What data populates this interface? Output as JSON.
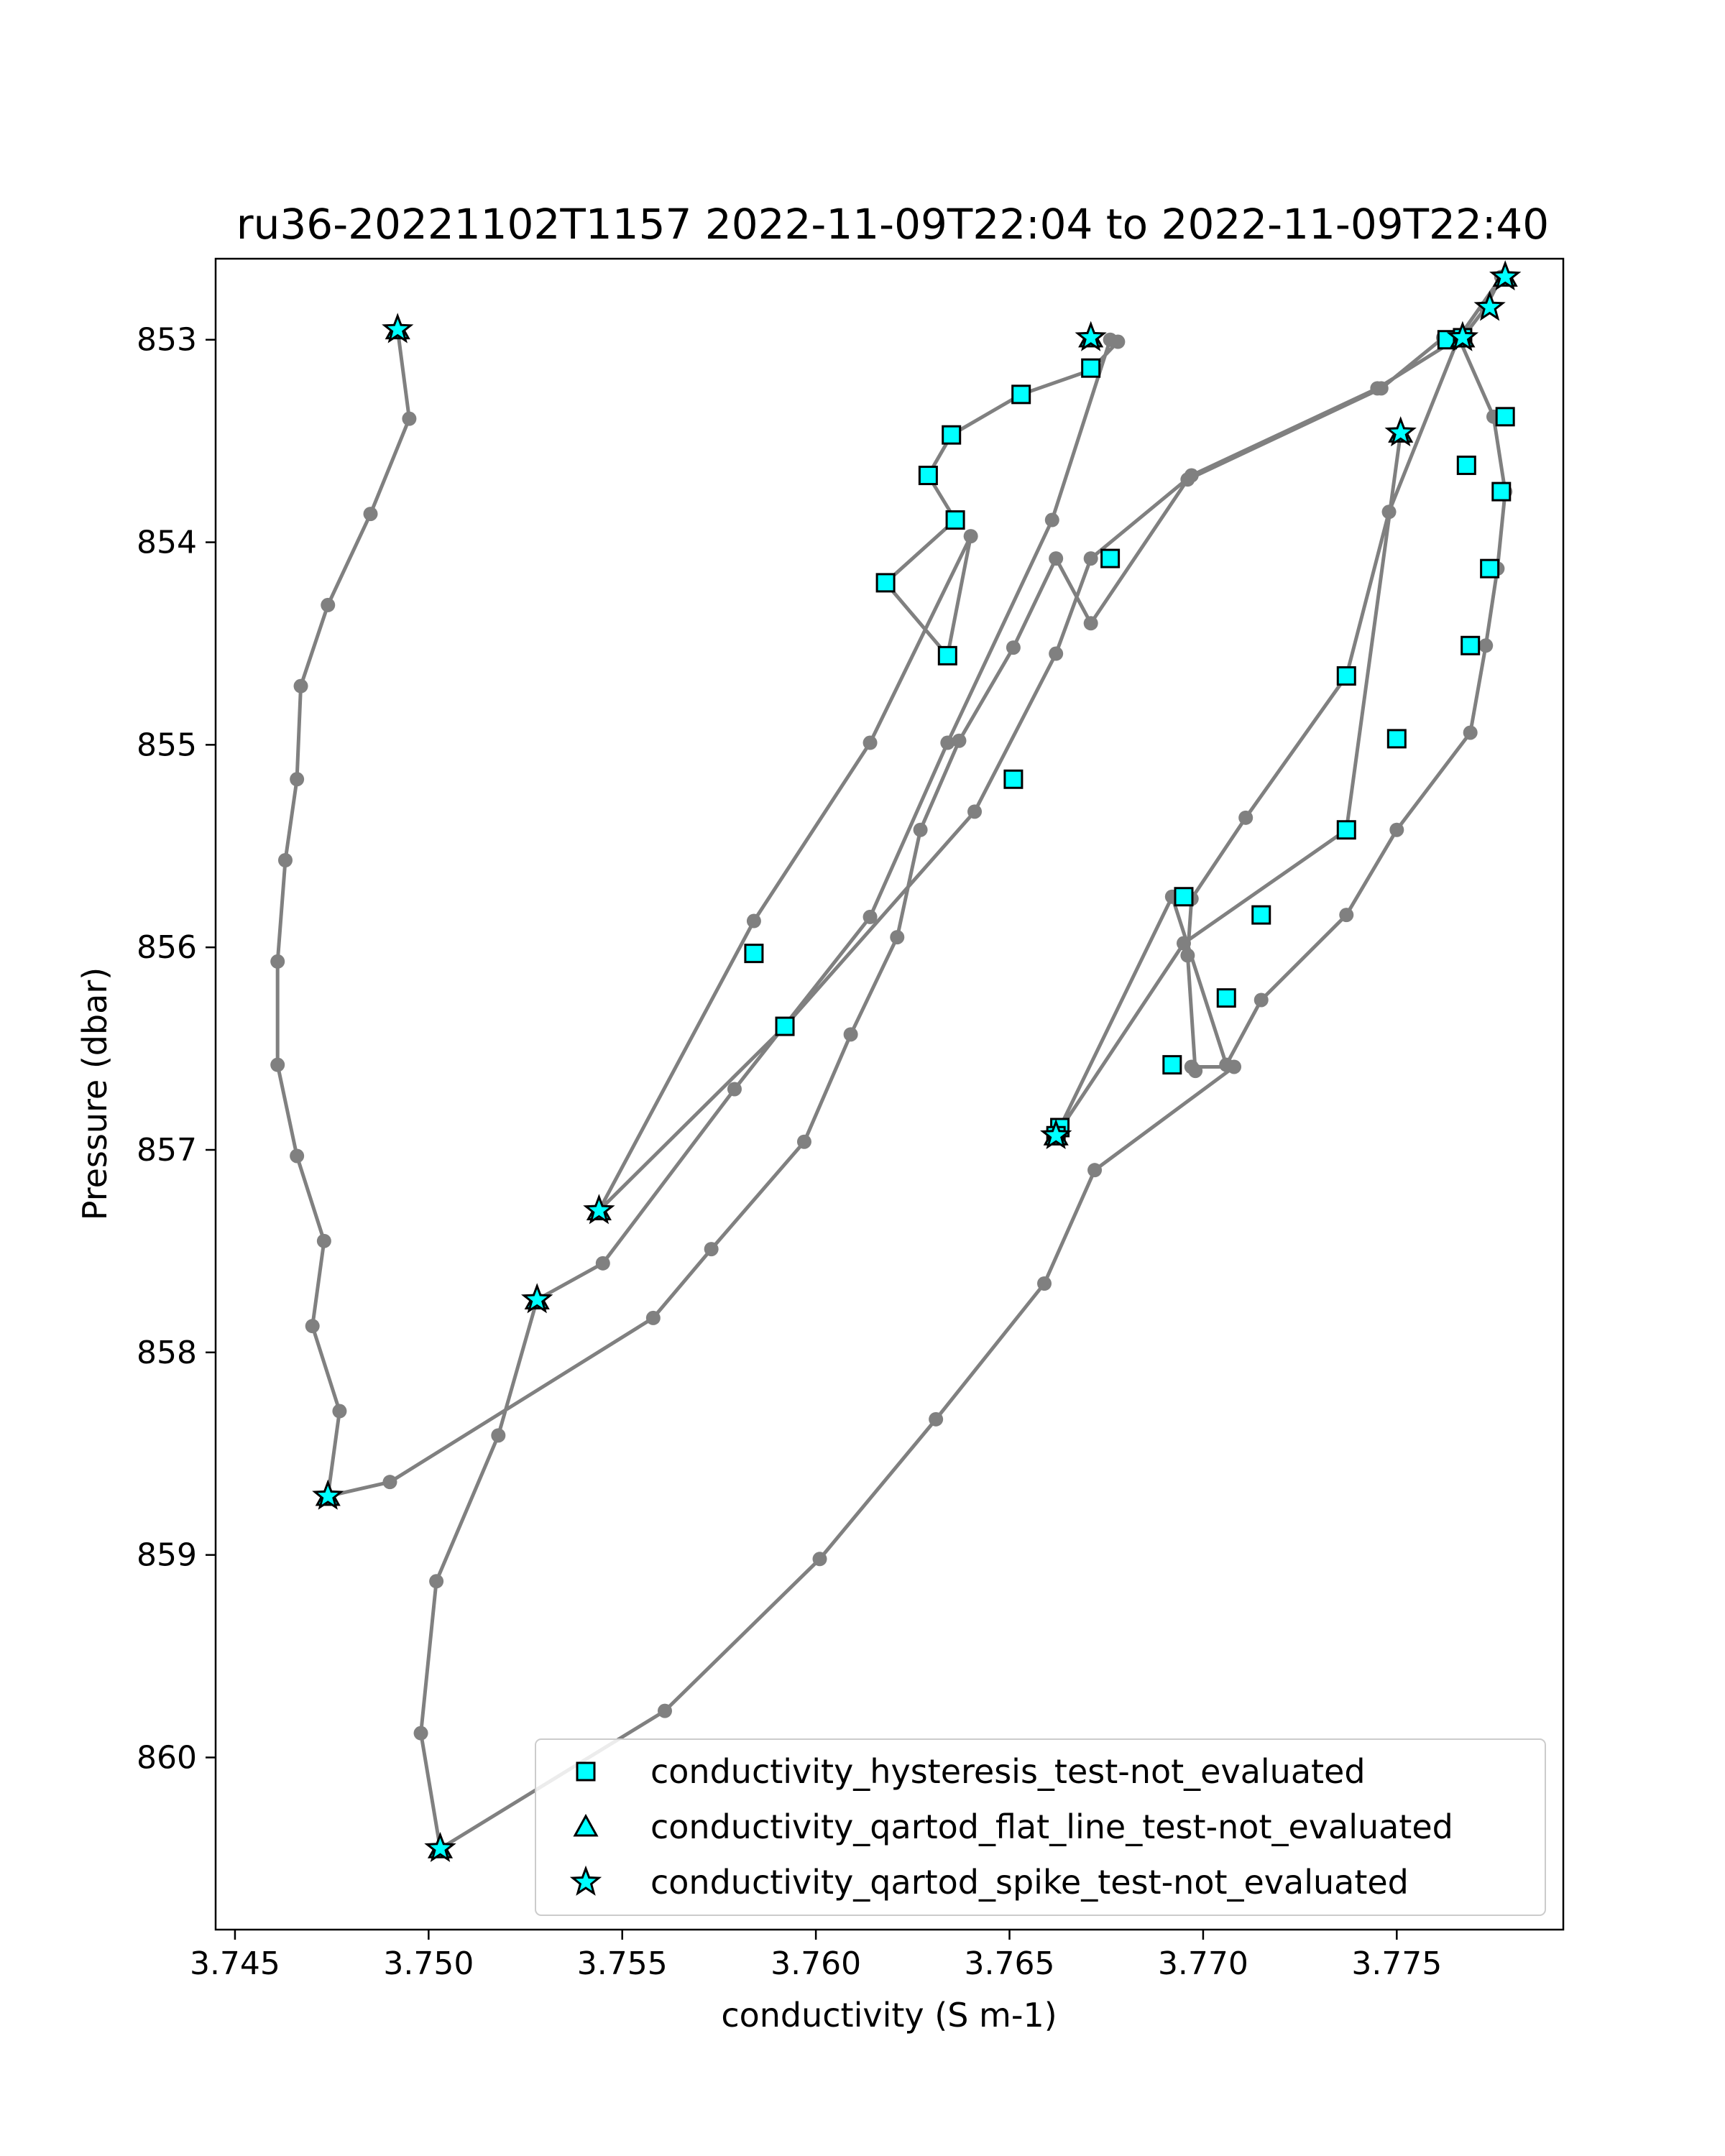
{
  "chart_data": {
    "type": "scatter",
    "title": "ru36-20221102T1157 2022-11-09T22:04 to 2022-11-09T22:40",
    "xlabel": "conductivity (S m-1)",
    "ylabel": "Pressure (dbar)",
    "xlim": [
      3.7445,
      3.7793
    ],
    "ylim": [
      860.85,
      852.6
    ],
    "y_inverted": true,
    "grid": false,
    "legend_position": "lower right",
    "xticks": [
      3.745,
      3.75,
      3.755,
      3.76,
      3.765,
      3.77,
      3.775
    ],
    "xtick_labels": [
      "3.745",
      "3.750",
      "3.755",
      "3.760",
      "3.765",
      "3.770",
      "3.775"
    ],
    "yticks": [
      853,
      854,
      855,
      856,
      857,
      858,
      859,
      860
    ],
    "ytick_labels": [
      "853",
      "854",
      "855",
      "856",
      "857",
      "858",
      "859",
      "860"
    ],
    "line_color": "#808080",
    "marker_fill": "#00ffff",
    "marker_edge": "#000000",
    "profile": {
      "x": [
        3.7492,
        3.7495,
        3.7485,
        3.7474,
        3.7467,
        3.7466,
        3.7463,
        3.7461,
        3.7461,
        3.7466,
        3.7473,
        3.747,
        3.7477,
        3.7474,
        3.749,
        3.7558,
        3.7573,
        3.7597,
        3.7609,
        3.7621,
        3.7627,
        3.7637,
        3.7651,
        3.7662,
        3.7671,
        3.7696,
        3.7746,
        3.7762,
        3.7767,
        3.7773,
        3.7777,
        3.7766,
        3.7748,
        3.7737,
        3.7711,
        3.7697,
        3.7696,
        3.7698,
        3.7697,
        3.7708,
        3.7672,
        3.7659,
        3.7631,
        3.7601,
        3.7561,
        3.7503,
        3.7498,
        3.7502,
        3.7518,
        3.7528,
        3.7545,
        3.7579,
        3.7614,
        3.7634,
        3.7661,
        3.7676,
        3.7678,
        3.7671,
        3.7653,
        3.7635,
        3.7629,
        3.7636,
        3.7618,
        3.7634,
        3.764,
        3.7614,
        3.7584,
        3.7544,
        3.7592,
        3.7641,
        3.7662,
        3.7671,
        3.7697,
        3.7745,
        3.7766,
        3.7775,
        3.7778,
        3.7776,
        3.7773,
        3.7769,
        3.775,
        3.7737,
        3.7715,
        3.7706,
        3.7692,
        3.7663,
        3.7662,
        3.7695,
        3.7737,
        3.7751
      ],
      "y": [
        852.95,
        853.39,
        853.86,
        854.31,
        854.71,
        855.17,
        855.57,
        856.07,
        856.58,
        857.03,
        857.45,
        857.87,
        858.29,
        858.71,
        858.64,
        857.83,
        857.49,
        856.96,
        856.43,
        855.95,
        855.42,
        854.98,
        854.52,
        854.08,
        854.4,
        853.69,
        853.24,
        852.99,
        852.99,
        852.84,
        852.69,
        852.99,
        853.85,
        854.66,
        855.36,
        855.76,
        856.04,
        856.61,
        856.59,
        856.59,
        857.1,
        857.66,
        858.33,
        859.02,
        859.77,
        860.45,
        859.88,
        859.13,
        858.41,
        857.74,
        857.56,
        856.7,
        855.85,
        854.99,
        853.89,
        853.0,
        853.01,
        853.15,
        853.27,
        853.47,
        853.67,
        853.89,
        854.2,
        854.56,
        853.97,
        854.99,
        855.87,
        857.3,
        856.39,
        855.33,
        854.55,
        854.08,
        853.67,
        853.24,
        852.99,
        853.38,
        853.75,
        854.13,
        854.51,
        854.94,
        855.42,
        855.84,
        856.26,
        856.58,
        855.75,
        856.89,
        856.93,
        855.98,
        855.42,
        853.46
      ]
    },
    "series": [
      {
        "name": "conductivity_hysteresis_test-not_evaluated",
        "marker": "square",
        "x": [
          3.7671,
          3.7653,
          3.7635,
          3.7629,
          3.7636,
          3.7618,
          3.7634,
          3.7584,
          3.7592,
          3.7651,
          3.7676,
          3.7763,
          3.7767,
          3.7778,
          3.7768,
          3.7777,
          3.7774,
          3.7769,
          3.7737,
          3.775,
          3.7737,
          3.7715,
          3.7706,
          3.7692,
          3.7695,
          3.7663,
          3.7662
        ],
        "y": [
          853.14,
          853.27,
          853.47,
          853.67,
          853.89,
          854.2,
          854.56,
          856.03,
          856.39,
          855.17,
          854.08,
          853.0,
          852.99,
          853.38,
          853.62,
          853.75,
          854.13,
          854.51,
          854.66,
          854.97,
          855.42,
          855.84,
          856.25,
          856.58,
          855.75,
          856.89,
          856.93
        ]
      },
      {
        "name": "conductivity_qartod_flat_line_test-not_evaluated",
        "marker": "triangle",
        "x": [
          3.7492,
          3.7671,
          3.7778,
          3.7767,
          3.7751,
          3.7544,
          3.7528,
          3.7474,
          3.7503,
          3.7662
        ],
        "y": [
          852.95,
          852.99,
          852.69,
          852.99,
          853.46,
          857.3,
          857.74,
          858.71,
          860.45,
          856.93
        ]
      },
      {
        "name": "conductivity_qartod_spike_test-not_evaluated",
        "marker": "star",
        "x": [
          3.7492,
          3.7671,
          3.7778,
          3.7774,
          3.7767,
          3.7751,
          3.7544,
          3.7528,
          3.7474,
          3.7503,
          3.7662
        ],
        "y": [
          852.95,
          852.99,
          852.69,
          852.84,
          852.99,
          853.46,
          857.3,
          857.74,
          858.71,
          860.45,
          856.93
        ]
      }
    ]
  }
}
